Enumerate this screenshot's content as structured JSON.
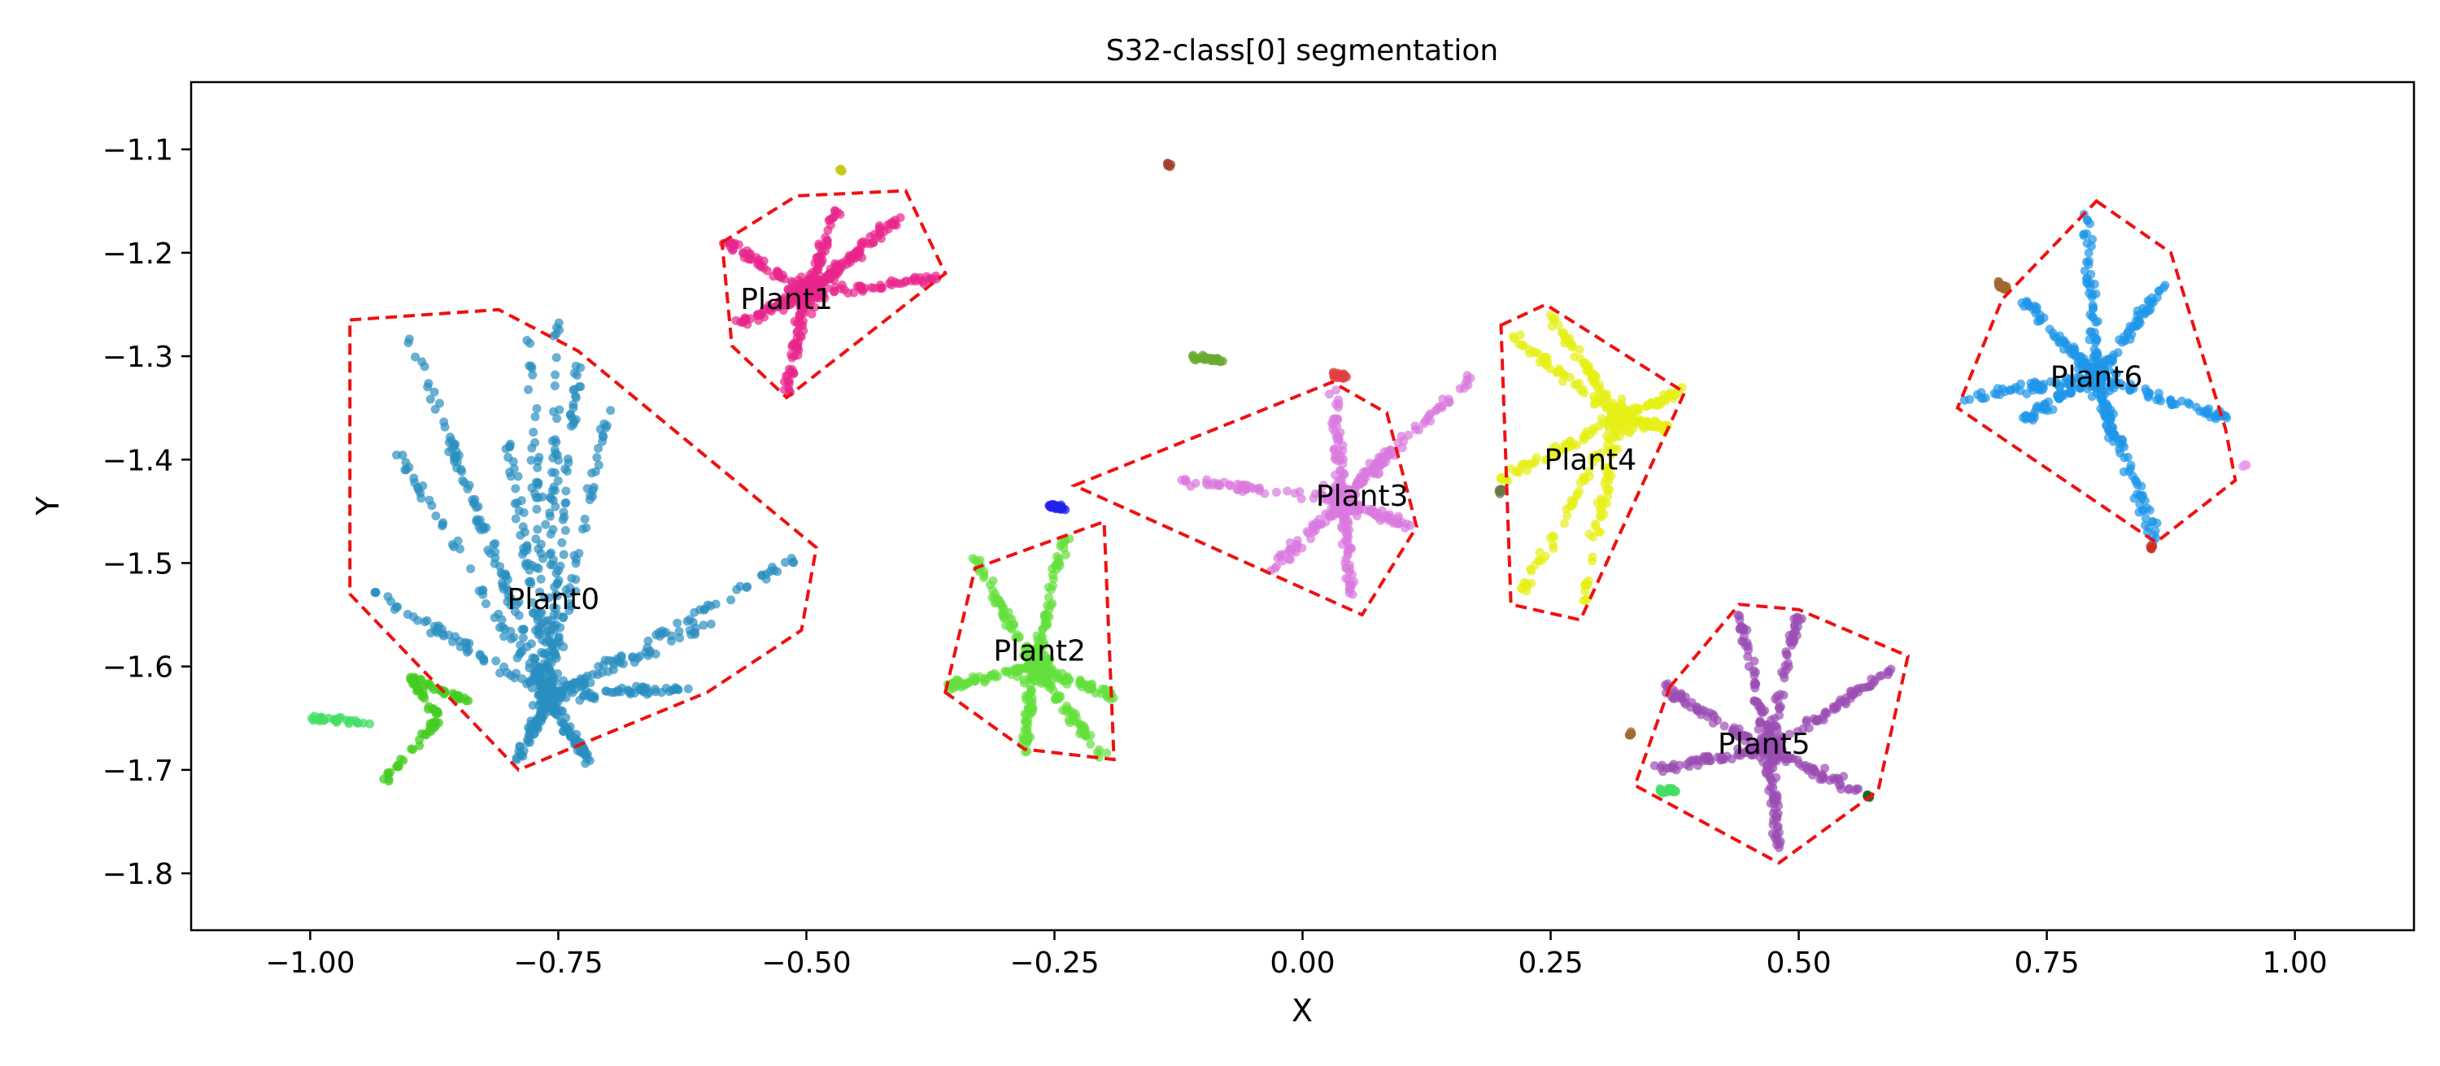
{
  "chart_data": {
    "type": "scatter",
    "title": "S32-class[0] segmentation",
    "xlabel": "X",
    "ylabel": "Y",
    "xlim": [
      -1.12,
      1.12
    ],
    "ylim": [
      -1.855,
      -1.035
    ],
    "grid": false,
    "x_ticks": [
      {
        "value": -1.0,
        "label": "−1.00"
      },
      {
        "value": -0.75,
        "label": "−0.75"
      },
      {
        "value": -0.5,
        "label": "−0.50"
      },
      {
        "value": -0.25,
        "label": "−0.25"
      },
      {
        "value": 0.0,
        "label": "0.00"
      },
      {
        "value": 0.25,
        "label": "0.25"
      },
      {
        "value": 0.5,
        "label": "0.50"
      },
      {
        "value": 0.75,
        "label": "0.75"
      },
      {
        "value": 1.0,
        "label": "1.00"
      }
    ],
    "y_ticks": [
      {
        "value": -1.1,
        "label": "−1.1"
      },
      {
        "value": -1.2,
        "label": "−1.2"
      },
      {
        "value": -1.3,
        "label": "−1.3"
      },
      {
        "value": -1.4,
        "label": "−1.4"
      },
      {
        "value": -1.5,
        "label": "−1.5"
      },
      {
        "value": -1.6,
        "label": "−1.6"
      },
      {
        "value": -1.7,
        "label": "−1.7"
      },
      {
        "value": -1.8,
        "label": "−1.8"
      }
    ],
    "boundary_color": "#ee1111",
    "plants": [
      {
        "name": "Plant0",
        "color": "#2a8ec0",
        "label_pos": [
          -0.755,
          -1.535
        ],
        "center": [
          -0.76,
          -1.63
        ],
        "arms": [
          [
            -0.94,
            -1.525
          ],
          [
            -0.92,
            -1.38
          ],
          [
            -0.9,
            -1.28
          ],
          [
            -0.86,
            -1.38
          ],
          [
            -0.78,
            -1.27
          ],
          [
            -0.8,
            -1.38
          ],
          [
            -0.75,
            -1.26
          ],
          [
            -0.7,
            -1.35
          ],
          [
            -0.73,
            -1.3
          ],
          [
            -0.6,
            -1.56
          ],
          [
            -0.5,
            -1.49
          ],
          [
            -0.62,
            -1.62
          ],
          [
            -0.72,
            -1.69
          ],
          [
            -0.79,
            -1.69
          ]
        ],
        "hull": [
          [
            -0.96,
            -1.265
          ],
          [
            -0.81,
            -1.255
          ],
          [
            -0.73,
            -1.295
          ],
          [
            -0.49,
            -1.485
          ],
          [
            -0.505,
            -1.565
          ],
          [
            -0.6,
            -1.625
          ],
          [
            -0.79,
            -1.7
          ],
          [
            -0.96,
            -1.53
          ]
        ]
      },
      {
        "name": "Plant1",
        "color": "#e8258b",
        "label_pos": [
          -0.52,
          -1.245
        ],
        "center": [
          -0.5,
          -1.24
        ],
        "arms": [
          [
            -0.58,
            -1.19
          ],
          [
            -0.57,
            -1.27
          ],
          [
            -0.52,
            -1.335
          ],
          [
            -0.45,
            -1.2
          ],
          [
            -0.4,
            -1.16
          ],
          [
            -0.37,
            -1.225
          ],
          [
            -0.47,
            -1.16
          ]
        ],
        "hull": [
          [
            -0.585,
            -1.19
          ],
          [
            -0.51,
            -1.145
          ],
          [
            -0.4,
            -1.14
          ],
          [
            -0.36,
            -1.22
          ],
          [
            -0.52,
            -1.34
          ],
          [
            -0.575,
            -1.29
          ]
        ]
      },
      {
        "name": "Plant2",
        "color": "#64e03c",
        "label_pos": [
          -0.265,
          -1.585
        ],
        "center": [
          -0.27,
          -1.6
        ],
        "arms": [
          [
            -0.33,
            -1.495
          ],
          [
            -0.36,
            -1.62
          ],
          [
            -0.28,
            -1.68
          ],
          [
            -0.2,
            -1.69
          ],
          [
            -0.24,
            -1.475
          ],
          [
            -0.19,
            -1.63
          ]
        ],
        "hull": [
          [
            -0.36,
            -1.625
          ],
          [
            -0.33,
            -1.505
          ],
          [
            -0.2,
            -1.46
          ],
          [
            -0.19,
            -1.69
          ],
          [
            -0.28,
            -1.68
          ]
        ]
      },
      {
        "name": "Plant3",
        "color": "#da79de",
        "label_pos": [
          0.06,
          -1.435
        ],
        "center": [
          0.04,
          -1.44
        ],
        "arms": [
          [
            -0.12,
            -1.42
          ],
          [
            0.03,
            -1.335
          ],
          [
            0.09,
            -1.39
          ],
          [
            0.11,
            -1.465
          ],
          [
            0.05,
            -1.53
          ],
          [
            -0.03,
            -1.505
          ],
          [
            0.17,
            -1.32
          ]
        ],
        "hull": [
          [
            -0.23,
            -1.425
          ],
          [
            0.03,
            -1.325
          ],
          [
            0.085,
            -1.355
          ],
          [
            0.115,
            -1.465
          ],
          [
            0.06,
            -1.55
          ]
        ]
      },
      {
        "name": "Plant4",
        "color": "#e5ef15",
        "label_pos": [
          0.29,
          -1.4
        ],
        "center": [
          0.32,
          -1.36
        ],
        "arms": [
          [
            0.21,
            -1.28
          ],
          [
            0.25,
            -1.26
          ],
          [
            0.38,
            -1.335
          ],
          [
            0.37,
            -1.37
          ],
          [
            0.22,
            -1.53
          ],
          [
            0.28,
            -1.55
          ],
          [
            0.2,
            -1.42
          ]
        ],
        "hull": [
          [
            0.2,
            -1.27
          ],
          [
            0.245,
            -1.25
          ],
          [
            0.385,
            -1.335
          ],
          [
            0.28,
            -1.555
          ],
          [
            0.21,
            -1.54
          ]
        ]
      },
      {
        "name": "Plant5",
        "color": "#9b4db3",
        "label_pos": [
          0.465,
          -1.675
        ],
        "center": [
          0.47,
          -1.68
        ],
        "arms": [
          [
            0.36,
            -1.62
          ],
          [
            0.44,
            -1.55
          ],
          [
            0.5,
            -1.55
          ],
          [
            0.6,
            -1.6
          ],
          [
            0.56,
            -1.72
          ],
          [
            0.48,
            -1.78
          ],
          [
            0.35,
            -1.7
          ]
        ],
        "hull": [
          [
            0.37,
            -1.62
          ],
          [
            0.44,
            -1.54
          ],
          [
            0.5,
            -1.545
          ],
          [
            0.61,
            -1.59
          ],
          [
            0.58,
            -1.72
          ],
          [
            0.48,
            -1.79
          ],
          [
            0.335,
            -1.715
          ]
        ]
      },
      {
        "name": "Plant6",
        "color": "#1e96e8",
        "label_pos": [
          0.8,
          -1.32
        ],
        "center": [
          0.8,
          -1.32
        ],
        "arms": [
          [
            0.79,
            -1.16
          ],
          [
            0.87,
            -1.23
          ],
          [
            0.72,
            -1.24
          ],
          [
            0.67,
            -1.34
          ],
          [
            0.73,
            -1.36
          ],
          [
            0.93,
            -1.36
          ],
          [
            0.86,
            -1.48
          ],
          [
            0.82,
            -1.39
          ]
        ],
        "hull": [
          [
            0.8,
            -1.15
          ],
          [
            0.875,
            -1.2
          ],
          [
            0.93,
            -1.37
          ],
          [
            0.94,
            -1.42
          ],
          [
            0.86,
            -1.48
          ],
          [
            0.66,
            -1.35
          ],
          [
            0.705,
            -1.245
          ]
        ]
      }
    ],
    "stray_points": [
      {
        "color": "#44dd66",
        "points": [
          [
            -1.0,
            -1.65
          ],
          [
            -0.94,
            -1.655
          ]
        ]
      },
      {
        "color": "#44cc22",
        "points": [
          [
            -0.93,
            -1.715
          ],
          [
            -0.87,
            -1.65
          ],
          [
            -0.9,
            -1.61
          ],
          [
            -0.84,
            -1.635
          ]
        ]
      },
      {
        "color": "#c8c810",
        "points": [
          [
            -0.465,
            -1.12
          ]
        ]
      },
      {
        "color": "#2222ee",
        "points": [
          [
            -0.255,
            -1.445
          ],
          [
            -0.24,
            -1.448
          ]
        ]
      },
      {
        "color": "#a04030",
        "points": [
          [
            -0.135,
            -1.115
          ]
        ]
      },
      {
        "color": "#6aaa30",
        "points": [
          [
            -0.11,
            -1.3
          ],
          [
            -0.08,
            -1.305
          ]
        ]
      },
      {
        "color": "#e04040",
        "points": [
          [
            0.03,
            -1.318
          ],
          [
            0.045,
            -1.32
          ]
        ]
      },
      {
        "color": "#667744",
        "points": [
          [
            0.2,
            -1.43
          ]
        ]
      },
      {
        "color": "#a06a30",
        "points": [
          [
            0.33,
            -1.665
          ]
        ]
      },
      {
        "color": "#44dd66",
        "points": [
          [
            0.36,
            -1.72
          ],
          [
            0.375,
            -1.72
          ]
        ]
      },
      {
        "color": "#226622",
        "points": [
          [
            0.57,
            -1.725
          ]
        ]
      },
      {
        "color": "#a06a30",
        "points": [
          [
            0.7,
            -1.23
          ],
          [
            0.71,
            -1.235
          ]
        ]
      },
      {
        "color": "#cc3322",
        "points": [
          [
            0.855,
            -1.485
          ]
        ]
      },
      {
        "color": "#ee99ee",
        "points": [
          [
            0.95,
            -1.405
          ]
        ]
      }
    ]
  }
}
